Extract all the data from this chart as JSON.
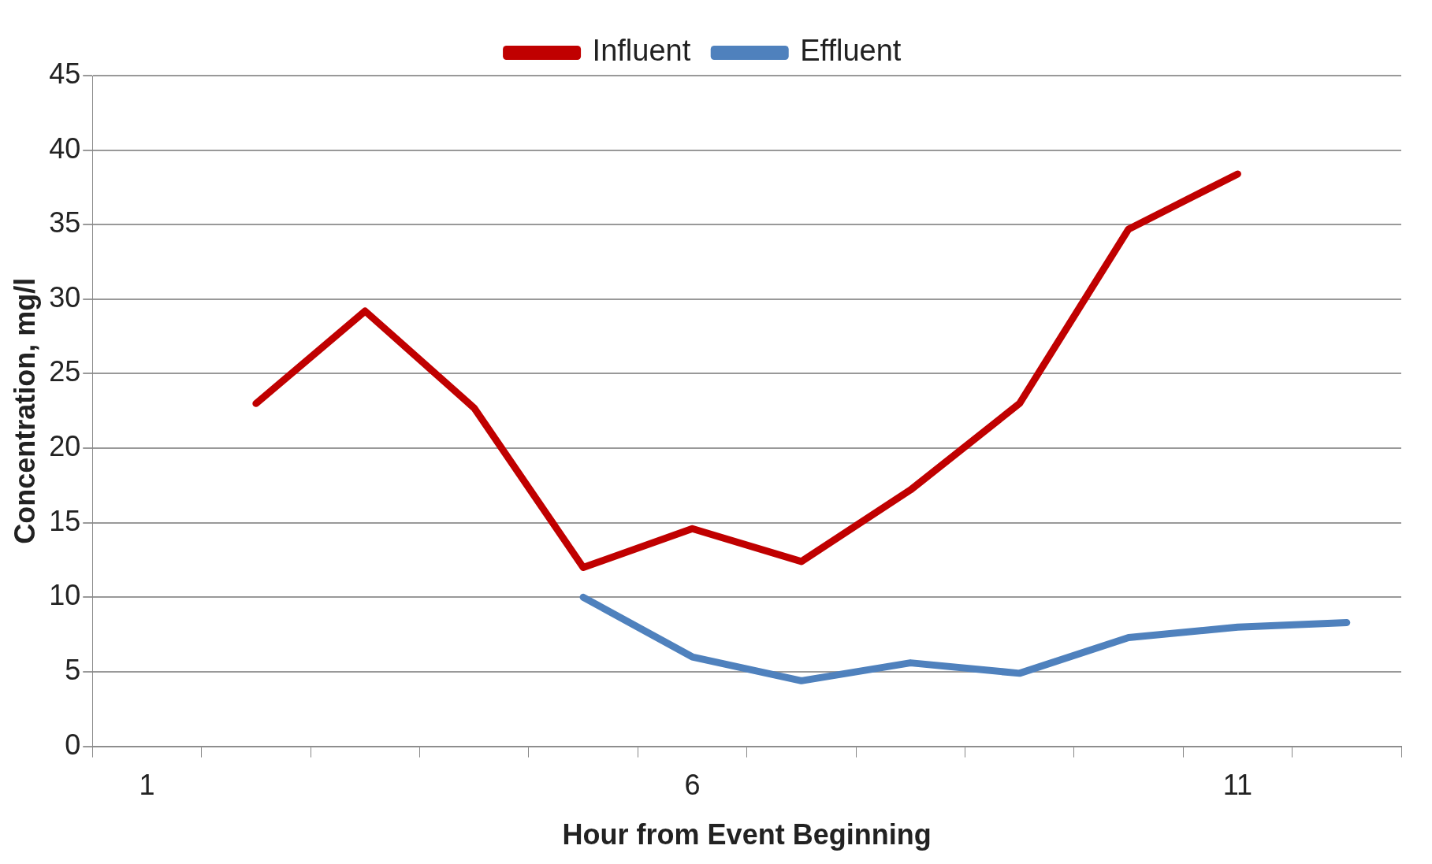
{
  "chart_data": {
    "type": "line",
    "xlabel": "Hour from Event Beginning",
    "ylabel": "Concentration, mg/l",
    "categories": [
      "1",
      null,
      null,
      null,
      null,
      "6",
      null,
      null,
      null,
      null,
      "11",
      null
    ],
    "series": [
      {
        "name": "Influent",
        "color": "#c00000",
        "values": [
          null,
          23,
          29.2,
          22.7,
          12,
          14.6,
          12.4,
          17.2,
          23,
          34.7,
          38.4,
          null
        ]
      },
      {
        "name": "Effluent",
        "color": "#4f81bd",
        "values": [
          null,
          null,
          null,
          null,
          10,
          6,
          4.4,
          5.6,
          4.9,
          7.3,
          8,
          8.3
        ]
      }
    ],
    "ylim": [
      0,
      45
    ],
    "yticks": [
      0,
      5,
      10,
      15,
      20,
      25,
      30,
      35,
      40,
      45
    ],
    "grid": "y",
    "legend": "top",
    "marker": "none",
    "line_style": "solid"
  }
}
